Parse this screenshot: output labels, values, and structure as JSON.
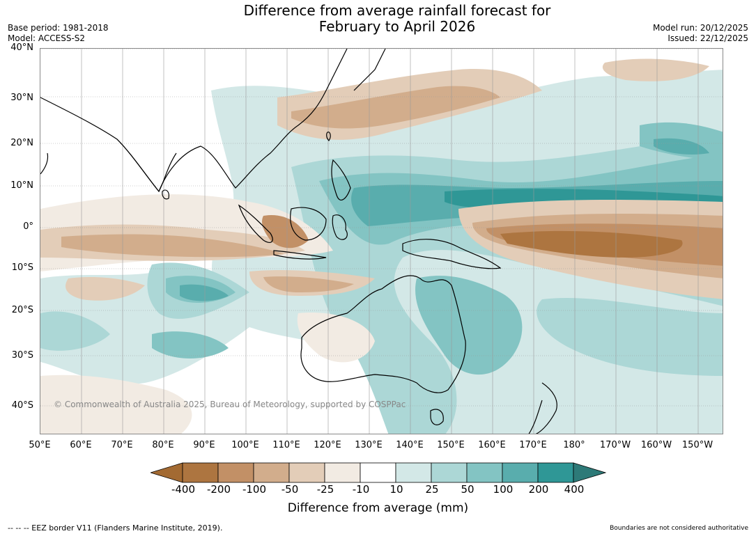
{
  "title": {
    "line1": "Difference from average rainfall forecast for",
    "line2": "February to April 2026"
  },
  "meta": {
    "base_period": "Base period: 1981-2018",
    "model": "Model: ACCESS-S2",
    "model_run": "Model run: 20/12/2025",
    "issued": "Issued: 22/12/2025"
  },
  "map": {
    "lat_labels": [
      "40°N",
      "30°N",
      "20°N",
      "10°N",
      "0°",
      "10°S",
      "20°S",
      "30°S",
      "40°S"
    ],
    "lon_labels": [
      "50°E",
      "60°E",
      "70°E",
      "80°E",
      "90°E",
      "100°E",
      "110°E",
      "120°E",
      "130°E",
      "140°E",
      "150°E",
      "160°E",
      "170°E",
      "180°",
      "170°W",
      "160°W",
      "150°W"
    ],
    "copyright": "© Commonwealth of Australia 2025, Bureau of Meteorology, supported by COSPPac"
  },
  "legend": {
    "tick_labels": [
      "-400",
      "-200",
      "-100",
      "-50",
      "-25",
      "-10",
      "10",
      "25",
      "50",
      "100",
      "200",
      "400"
    ],
    "colors": [
      "#a36a32",
      "#ad7540",
      "#c29066",
      "#d2ad8c",
      "#e3cdb8",
      "#f2ebe3",
      "#ffffff",
      "#d3e8e7",
      "#acd7d6",
      "#83c4c3",
      "#59adad",
      "#2f9796",
      "#2d7a78"
    ],
    "title": "Difference from average (mm)"
  },
  "footer": {
    "left": "--  --  -- EEZ border V11 (Flanders Marine Institute, 2019).",
    "right": "Boundaries are not considered authoritative"
  }
}
